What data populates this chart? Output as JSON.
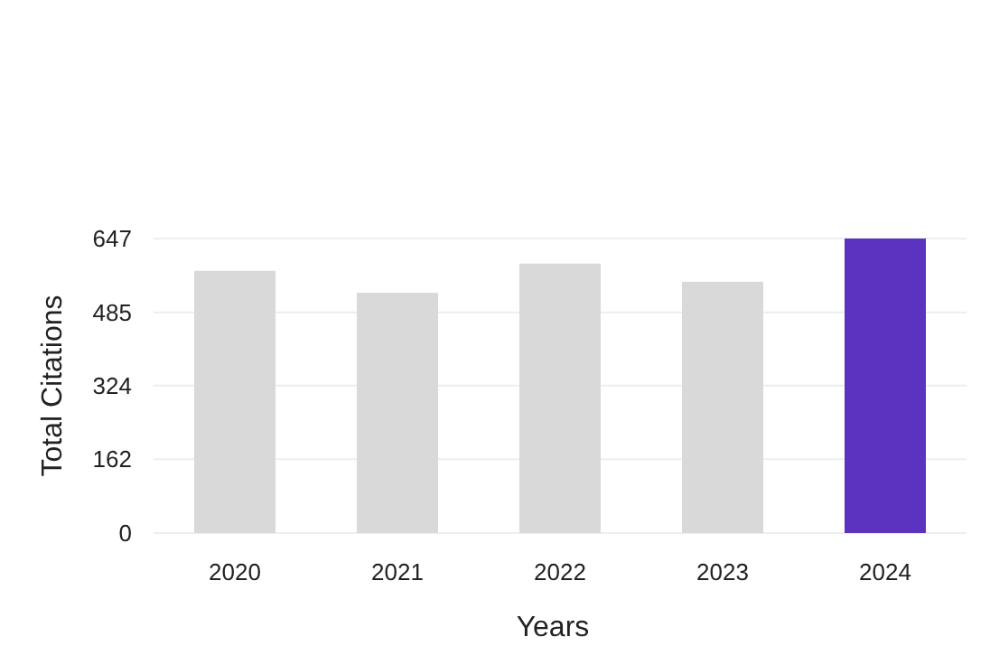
{
  "chart_data": {
    "type": "bar",
    "xlabel": "Years",
    "ylabel": "Total Citations",
    "categories": [
      "2020",
      "2021",
      "2022",
      "2023",
      "2024"
    ],
    "values": [
      576,
      528,
      592,
      552,
      647
    ],
    "colors": [
      "#d9d9d9",
      "#d9d9d9",
      "#d9d9d9",
      "#d9d9d9",
      "#5c33c0"
    ],
    "ylim": [
      0,
      647
    ],
    "yticks": [
      0,
      162,
      324,
      485,
      647
    ],
    "grid": "y"
  }
}
